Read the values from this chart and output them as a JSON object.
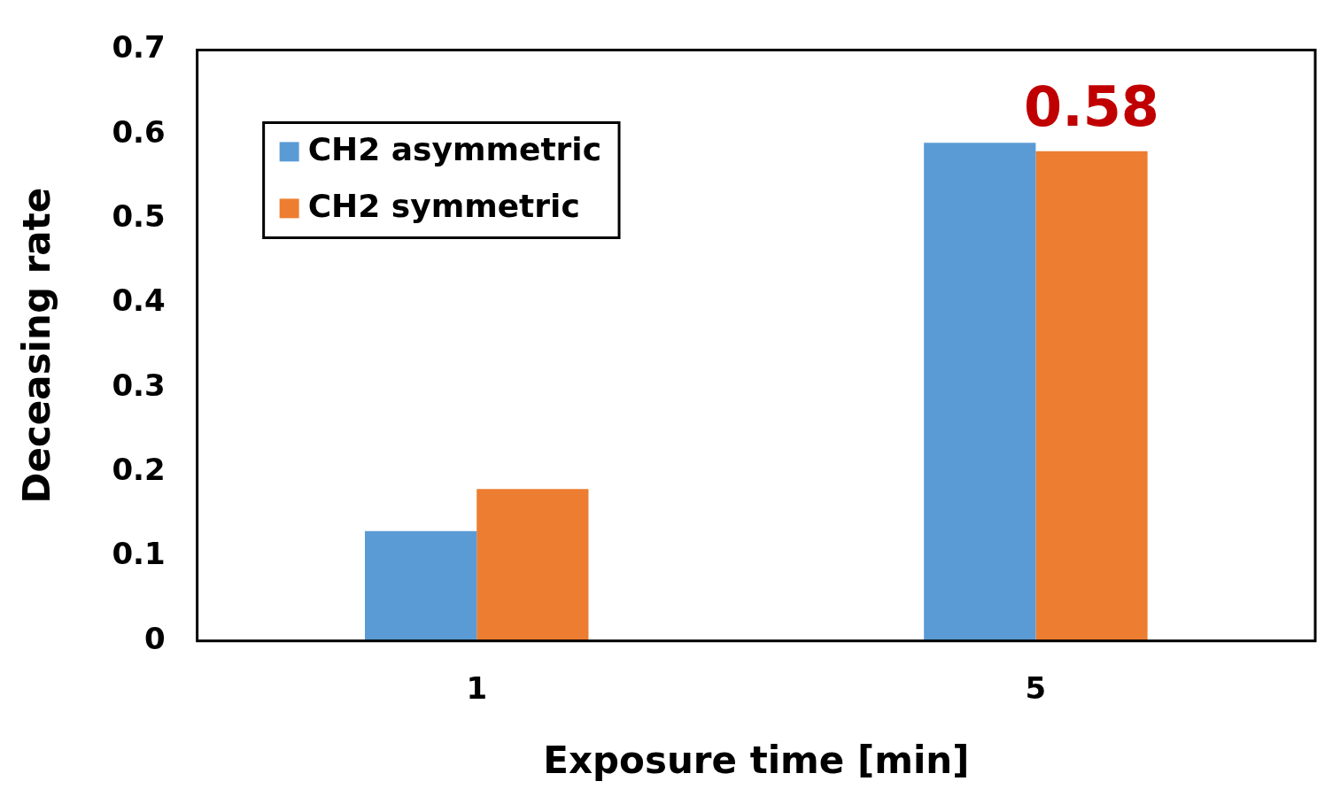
{
  "chart_data": {
    "type": "bar",
    "xlabel": "Exposure time [min]",
    "ylabel": "Deceasing rate",
    "categories": [
      "1",
      "5"
    ],
    "series": [
      {
        "name": "CH2 asymmetric",
        "color": "#5b9bd5",
        "values": [
          0.13,
          0.59
        ]
      },
      {
        "name": "CH2 symmetric",
        "color": "#ed7d31",
        "values": [
          0.18,
          0.58
        ]
      }
    ],
    "ylim": [
      0,
      0.7
    ],
    "yticks": [
      0,
      0.1,
      0.2,
      0.3,
      0.4,
      0.5,
      0.6,
      0.7
    ],
    "grid": false,
    "legend": "top left",
    "annotations": [
      {
        "text": "0.58",
        "x": "5",
        "y": 0.58
      }
    ]
  }
}
